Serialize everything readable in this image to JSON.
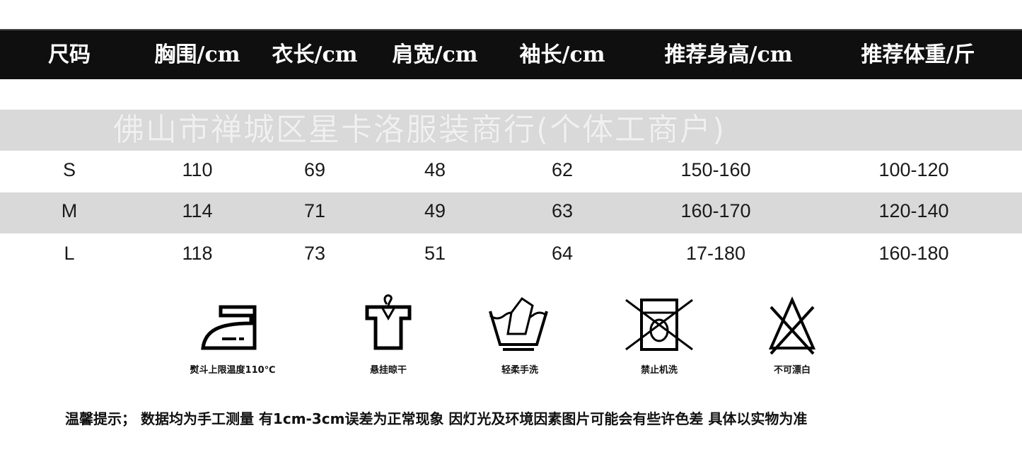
{
  "headers": [
    "尺码",
    "胸围/cm",
    "衣长/cm",
    "肩宽/cm",
    "袖长/cm",
    "推荐身高/cm",
    "推荐体重/斤"
  ],
  "rows": [
    [
      "S",
      "110",
      "69",
      "48",
      "62",
      "150-160",
      "100-120"
    ],
    [
      "M",
      "114",
      "71",
      "49",
      "63",
      "160-170",
      "120-140"
    ],
    [
      "L",
      "118",
      "73",
      "51",
      "64",
      "17-180",
      "160-180"
    ]
  ],
  "watermark": "佛山市禅城区星卡洛服装商行(个体工商户)",
  "care": [
    {
      "icon": "iron-icon",
      "label": "熨斗上限温度110℃"
    },
    {
      "icon": "hang-dry-icon",
      "label": "悬挂晾干"
    },
    {
      "icon": "hand-wash-icon",
      "label": "轻柔手洗"
    },
    {
      "icon": "no-machine-wash-icon",
      "label": "禁止机洗"
    },
    {
      "icon": "no-bleach-icon",
      "label": "不可漂白"
    }
  ],
  "note": "温馨提示； 数据均为手工测量 有1cm-3cm误差为正常现象 因灯光及环境因素图片可能会有些许色差 具体以实物为准",
  "colors": {
    "header_bg": "#0f0f0f",
    "band": "#d9d9d9"
  }
}
